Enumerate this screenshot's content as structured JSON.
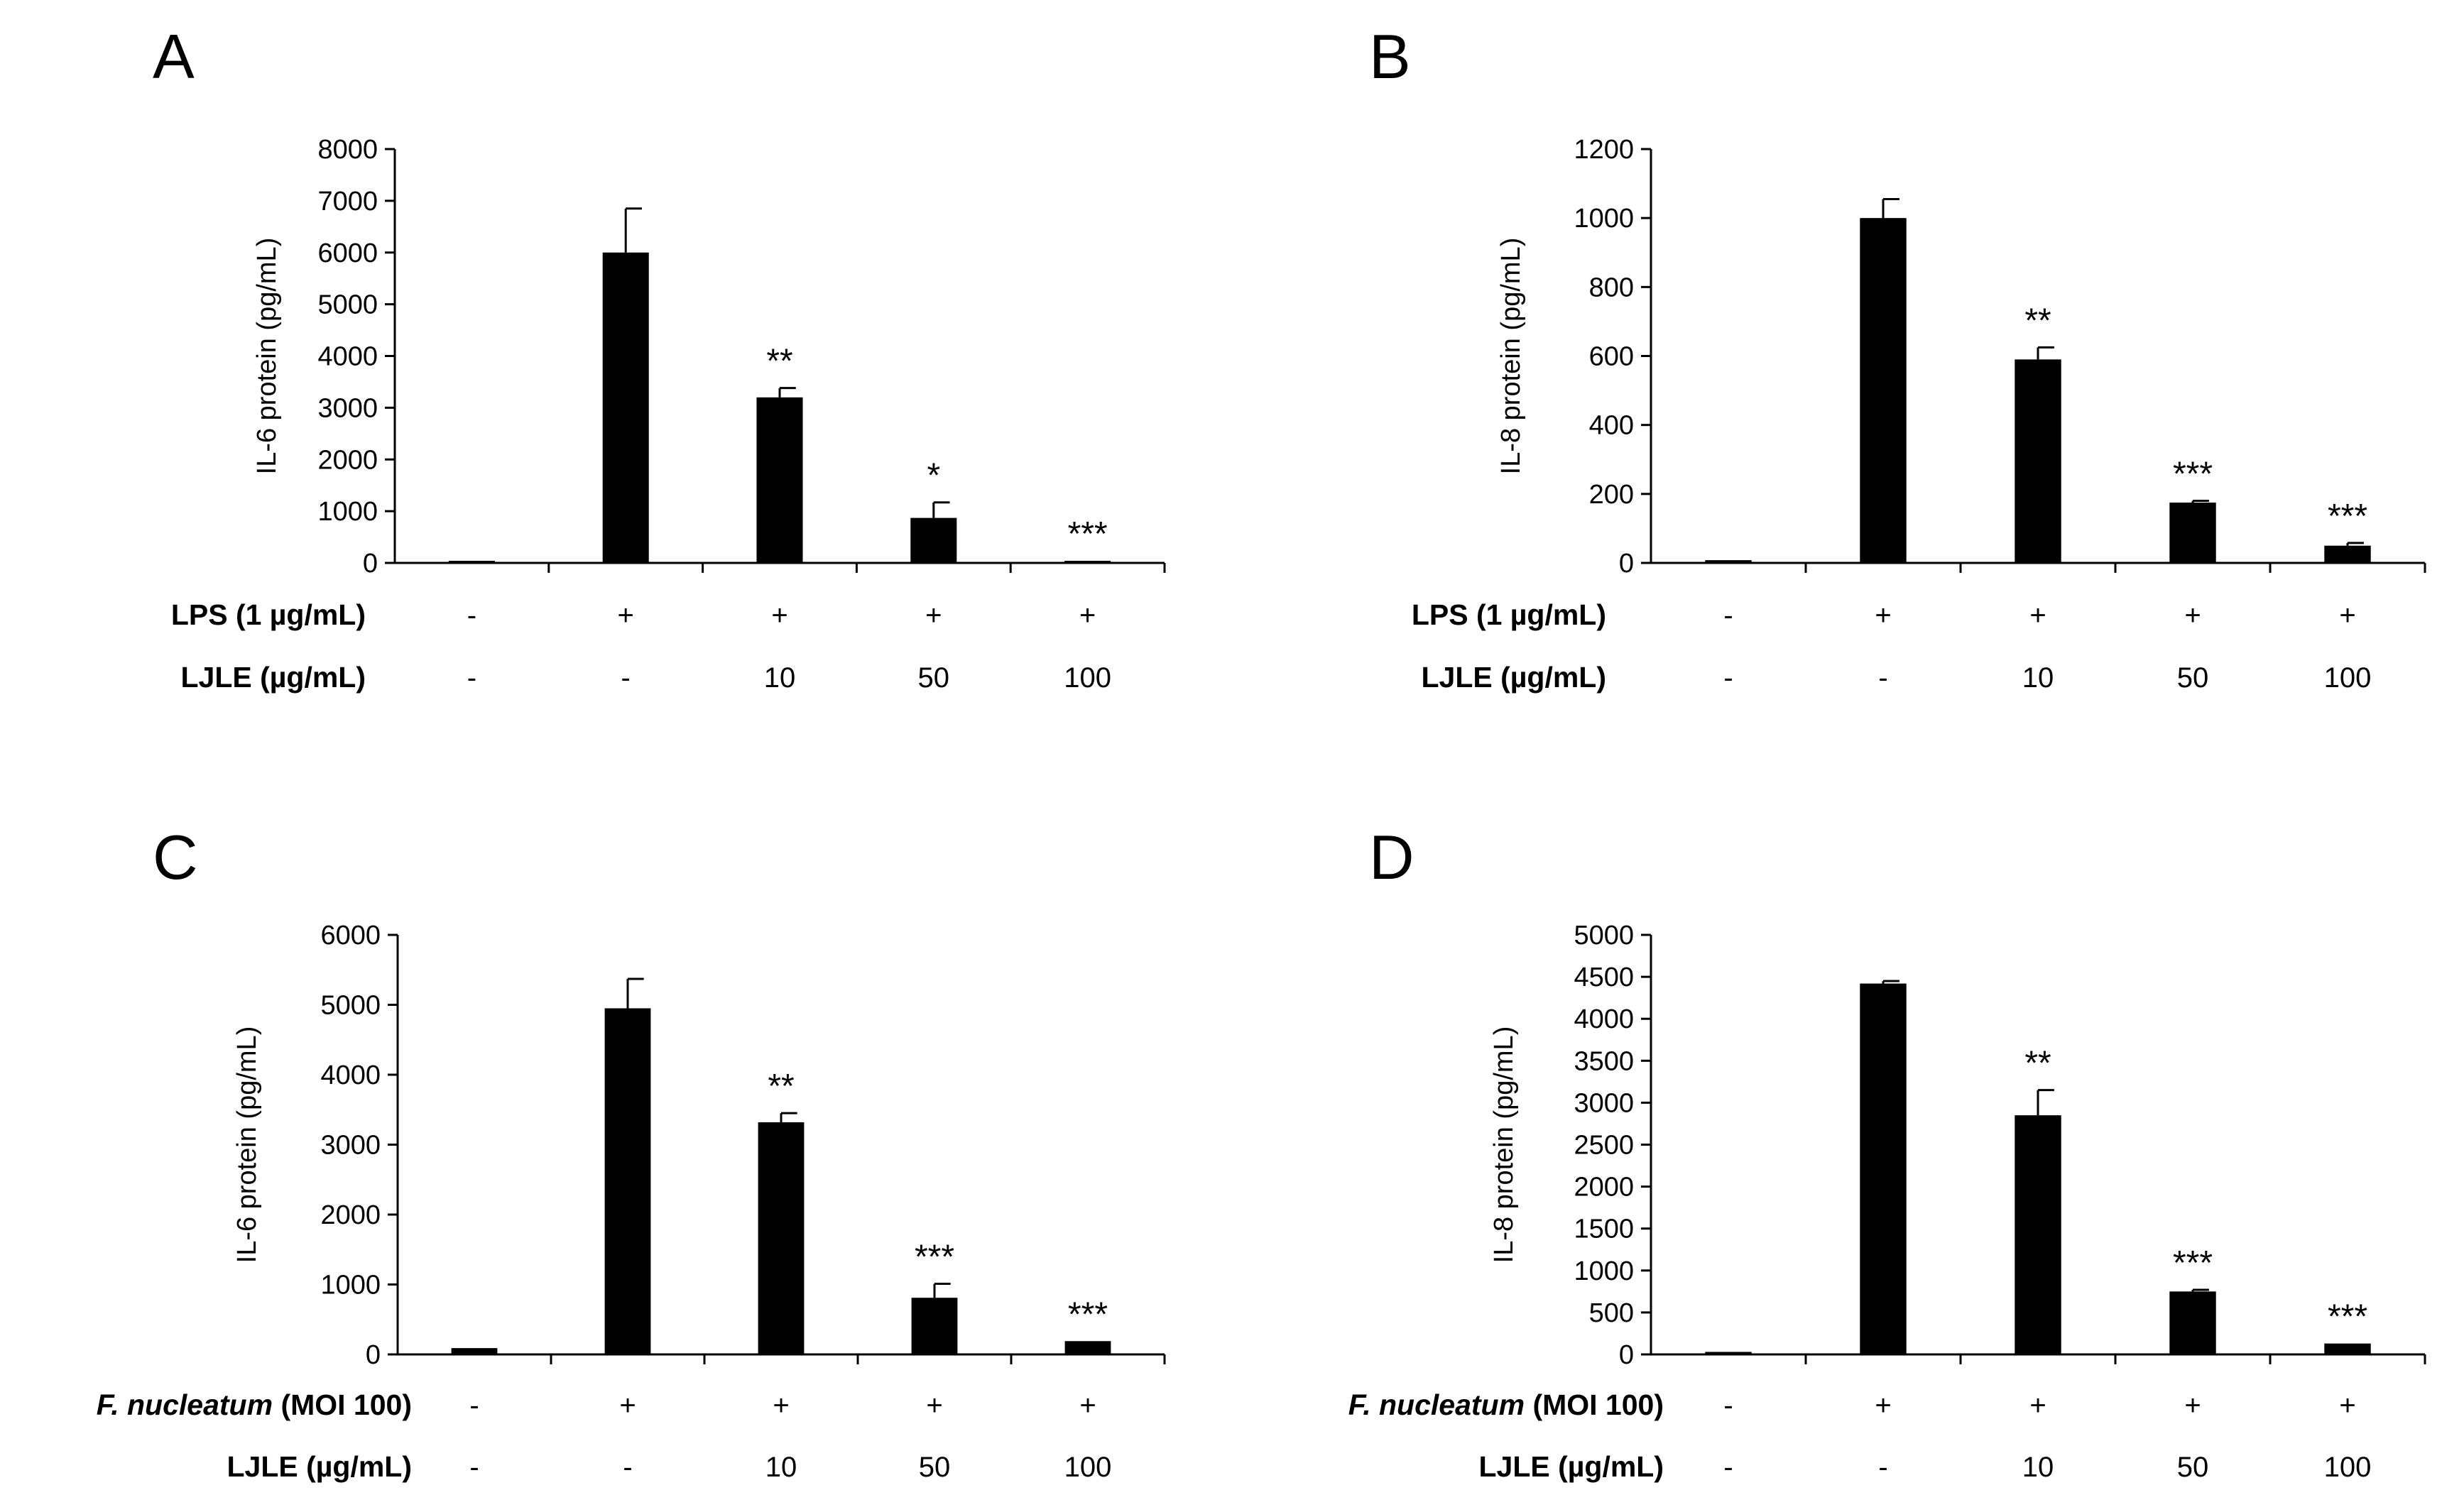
{
  "figure": {
    "background": "#ffffff",
    "bar_color": "#000000"
  },
  "chart_data": [
    {
      "panel": "A",
      "type": "bar",
      "ylabel": "IL-6 protein (pg/mL)",
      "ylim": [
        0,
        8000
      ],
      "yticks": [
        0,
        1000,
        2000,
        3000,
        4000,
        5000,
        6000,
        7000,
        8000
      ],
      "values": [
        40,
        6000,
        3200,
        870,
        30
      ],
      "errors": [
        0,
        850,
        180,
        300,
        0
      ],
      "significance": [
        "",
        "",
        "**",
        "*",
        "***"
      ],
      "rows": [
        {
          "label": "LPS (1 µg/mL)",
          "italic_part": "",
          "values": [
            "-",
            "+",
            "+",
            "+",
            "+"
          ]
        },
        {
          "label": "LJLE (µg/mL)",
          "italic_part": "",
          "values": [
            "-",
            "-",
            "10",
            "50",
            "100"
          ]
        }
      ]
    },
    {
      "panel": "B",
      "type": "bar",
      "ylabel": "IL-8 protein (pg/mL)",
      "ylim": [
        0,
        1200
      ],
      "yticks": [
        0,
        200,
        400,
        600,
        800,
        1000,
        1200
      ],
      "values": [
        8,
        1000,
        590,
        175,
        50
      ],
      "errors": [
        0,
        55,
        35,
        5,
        8
      ],
      "significance": [
        "",
        "",
        "**",
        "***",
        "***"
      ],
      "rows": [
        {
          "label": "LPS (1 µg/mL)",
          "italic_part": "",
          "values": [
            "-",
            "+",
            "+",
            "+",
            "+"
          ]
        },
        {
          "label": "LJLE (µg/mL)",
          "italic_part": "",
          "values": [
            "-",
            "-",
            "10",
            "50",
            "100"
          ]
        }
      ]
    },
    {
      "panel": "C",
      "type": "bar",
      "ylabel": "IL-6 protein (pg/mL)",
      "ylim": [
        0,
        6000
      ],
      "yticks": [
        0,
        1000,
        2000,
        3000,
        4000,
        5000,
        6000
      ],
      "values": [
        90,
        4950,
        3320,
        810,
        190
      ],
      "errors": [
        0,
        420,
        130,
        200,
        0
      ],
      "significance": [
        "",
        "",
        "**",
        "***",
        "***"
      ],
      "rows": [
        {
          "label": " (MOI 100)",
          "italic_part": "F. nucleatum",
          "values": [
            "-",
            "+",
            "+",
            "+",
            "+"
          ]
        },
        {
          "label": "LJLE (µg/mL)",
          "italic_part": "",
          "values": [
            "-",
            "-",
            "10",
            "50",
            "100"
          ]
        }
      ]
    },
    {
      "panel": "D",
      "type": "bar",
      "ylabel": "IL-8 protein (pg/mL)",
      "ylim": [
        0,
        5000
      ],
      "yticks": [
        0,
        500,
        1000,
        1500,
        2000,
        2500,
        3000,
        3500,
        4000,
        4500,
        5000
      ],
      "values": [
        30,
        4420,
        2850,
        750,
        130
      ],
      "errors": [
        0,
        30,
        300,
        20,
        0
      ],
      "significance": [
        "",
        "",
        "**",
        "***",
        "***"
      ],
      "rows": [
        {
          "label": " (MOI 100)",
          "italic_part": "F. nucleatum",
          "values": [
            "-",
            "+",
            "+",
            "+",
            "+"
          ]
        },
        {
          "label": "LJLE (µg/mL)",
          "italic_part": "",
          "values": [
            "-",
            "-",
            "10",
            "50",
            "100"
          ]
        }
      ]
    }
  ]
}
